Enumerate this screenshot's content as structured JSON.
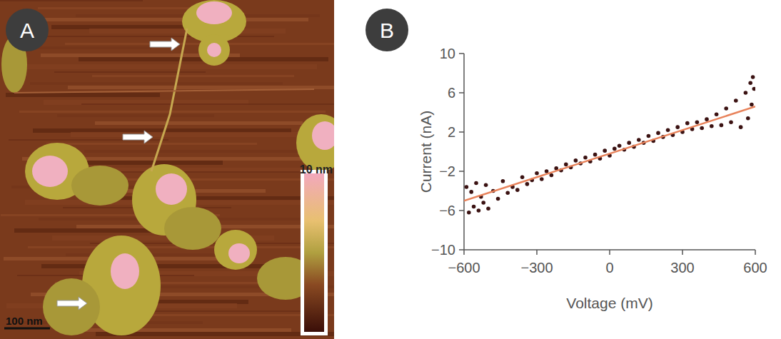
{
  "panels": {
    "a": {
      "letter": "A",
      "colorbar_label": "10 nm",
      "scale_bar_label": "100 nm"
    },
    "b": {
      "letter": "B"
    }
  },
  "chart_data": {
    "type": "scatter",
    "x_label": "Voltage (mV)",
    "y_label": "Current (nA)",
    "xlim": [
      -600,
      600
    ],
    "xticks": [
      -600,
      -300,
      0,
      300,
      600
    ],
    "ylim": [
      -10,
      10
    ],
    "yticks": [
      -10,
      -6,
      -2,
      2,
      6,
      10
    ],
    "series": [
      {
        "type": "scatter",
        "color": "#3b1212",
        "marker": "circle",
        "x": [
          -590,
          -580,
          -570,
          -560,
          -550,
          -540,
          -530,
          -520,
          -510,
          -500,
          -480,
          -460,
          -440,
          -420,
          -400,
          -380,
          -360,
          -340,
          -320,
          -300,
          -280,
          -260,
          -240,
          -220,
          -200,
          -180,
          -160,
          -140,
          -120,
          -100,
          -80,
          -60,
          -40,
          -20,
          0,
          20,
          40,
          60,
          80,
          100,
          120,
          140,
          160,
          180,
          200,
          220,
          240,
          260,
          280,
          300,
          320,
          340,
          360,
          380,
          400,
          420,
          440,
          460,
          480,
          500,
          520,
          540,
          560,
          570,
          580,
          585,
          590,
          595
        ],
        "values": [
          -3.6,
          -6.2,
          -4.1,
          -5.6,
          -3.2,
          -6.0,
          -4.6,
          -5.2,
          -3.4,
          -5.8,
          -4.0,
          -4.8,
          -3.0,
          -4.2,
          -3.6,
          -3.9,
          -2.6,
          -3.3,
          -2.9,
          -2.2,
          -2.8,
          -2.0,
          -2.4,
          -1.7,
          -1.9,
          -1.3,
          -1.6,
          -0.9,
          -1.2,
          -0.6,
          -1.0,
          -0.3,
          -0.7,
          0.1,
          -0.4,
          0.3,
          0.6,
          0.2,
          0.9,
          0.5,
          1.2,
          0.9,
          1.6,
          1.1,
          1.9,
          1.5,
          2.2,
          1.7,
          2.5,
          2.0,
          2.9,
          2.3,
          3.0,
          2.4,
          3.3,
          2.6,
          3.8,
          2.7,
          4.4,
          3.0,
          5.2,
          2.5,
          6.0,
          3.4,
          7.0,
          4.8,
          7.6,
          6.4
        ]
      },
      {
        "type": "line",
        "color": "#e8825a",
        "line_style": "solid",
        "x": [
          -600,
          600
        ],
        "values": [
          -5.0,
          4.6
        ]
      }
    ]
  }
}
